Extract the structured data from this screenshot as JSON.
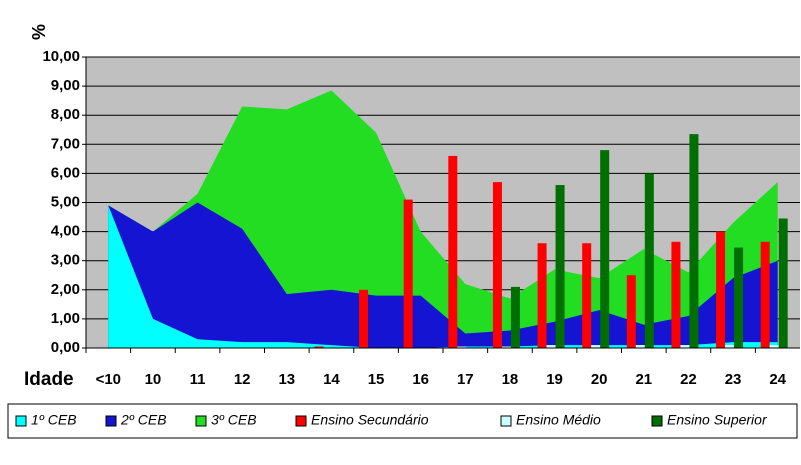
{
  "chart_data": {
    "type": "area_bar",
    "y_label": "%",
    "x_label": "Idade",
    "categories": [
      "<10",
      "10",
      "11",
      "12",
      "13",
      "14",
      "15",
      "16",
      "17",
      "18",
      "19",
      "20",
      "21",
      "22",
      "23",
      "24"
    ],
    "ylim": [
      0,
      10
    ],
    "yticks": [
      {
        "value": 0,
        "label": "0,00"
      },
      {
        "value": 1,
        "label": "1,00"
      },
      {
        "value": 2,
        "label": "2,00"
      },
      {
        "value": 3,
        "label": "3,00"
      },
      {
        "value": 4,
        "label": "4,00"
      },
      {
        "value": 5,
        "label": "5,00"
      },
      {
        "value": 6,
        "label": "6,00"
      },
      {
        "value": 7,
        "label": "7,00"
      },
      {
        "value": 8,
        "label": "8,00"
      },
      {
        "value": 9,
        "label": "9,00"
      },
      {
        "value": 10,
        "label": "10,00"
      }
    ],
    "grid": true,
    "series": [
      {
        "name": "1º CEB",
        "kind": "area",
        "color": "#00ffff",
        "values": [
          4.9,
          1.0,
          0.3,
          0.2,
          0.2,
          0.1,
          0,
          0,
          0.05,
          0.05,
          0.1,
          0.1,
          0.1,
          0.1,
          0.2,
          0.2
        ]
      },
      {
        "name": "2º CEB",
        "kind": "area",
        "color": "#1414d2",
        "values": [
          4.9,
          4.0,
          5.0,
          4.1,
          1.85,
          2.0,
          1.8,
          1.8,
          0.5,
          0.6,
          0.9,
          1.3,
          0.8,
          1.1,
          2.4,
          3.0
        ]
      },
      {
        "name": "3º CEB",
        "kind": "area",
        "color": "#22dd22",
        "values": [
          4.9,
          4.0,
          5.3,
          8.3,
          8.2,
          8.85,
          7.4,
          4.0,
          2.2,
          1.7,
          2.7,
          2.4,
          3.4,
          2.6,
          4.3,
          5.7
        ]
      },
      {
        "name": "Ensino Secundário",
        "kind": "bar",
        "color": "#ff0000",
        "values": [
          0,
          0,
          0,
          0,
          0,
          0.05,
          2.0,
          5.1,
          6.6,
          5.7,
          3.6,
          3.6,
          2.5,
          3.65,
          4.0,
          3.65
        ]
      },
      {
        "name": "Ensino Médio",
        "kind": "bar",
        "color": "#ccffff",
        "values": [
          0,
          0,
          0,
          0,
          0,
          0,
          0,
          0,
          0.05,
          0.05,
          0.1,
          0.1,
          0.1,
          0.1,
          0.1,
          0.1
        ]
      },
      {
        "name": "Ensino Superior",
        "kind": "bar",
        "color": "#006e00",
        "values": [
          0,
          0,
          0,
          0,
          0,
          0,
          0,
          0,
          0,
          2.1,
          5.6,
          6.8,
          6.0,
          7.35,
          3.45,
          4.45
        ]
      }
    ]
  }
}
